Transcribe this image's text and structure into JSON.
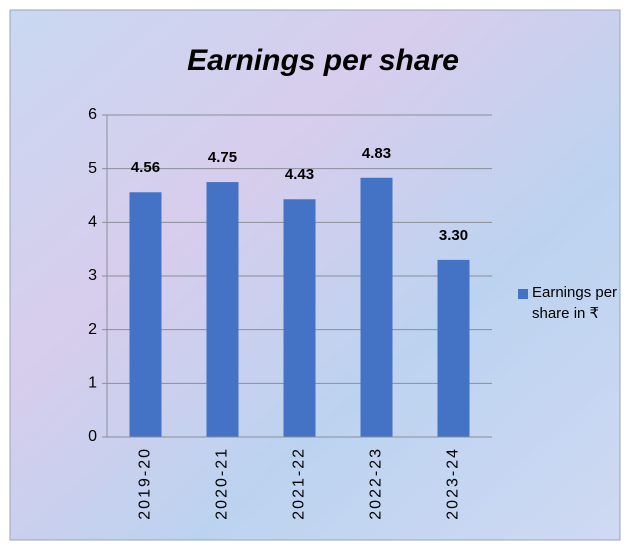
{
  "chart_data": {
    "type": "bar",
    "title": "Earnings per share",
    "categories": [
      "2019-20",
      "2020-21",
      "2021-22",
      "2022-23",
      "2023-24"
    ],
    "series": [
      {
        "name": "Earnings per share in ₹",
        "color": "#4472c4",
        "values": [
          4.56,
          4.75,
          4.43,
          4.83,
          3.3
        ],
        "value_labels": [
          "4.56",
          "4.75",
          "4.43",
          "4.83",
          "3.30"
        ]
      }
    ],
    "ylim": [
      0,
      6
    ],
    "yticks": [
      0,
      1,
      2,
      3,
      4,
      5,
      6
    ],
    "grid": true,
    "legend": "right"
  }
}
